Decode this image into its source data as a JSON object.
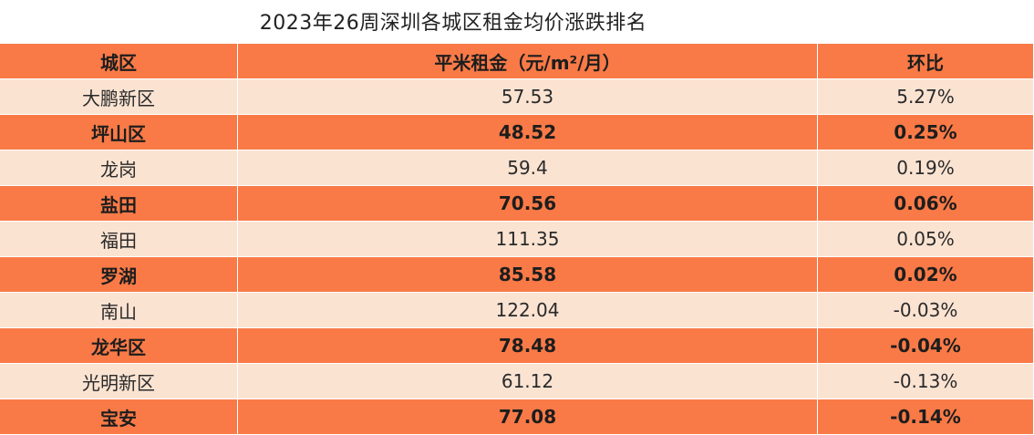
{
  "title": "2023年26周深圳各城区租金均价涨跌排名",
  "header": {
    "district": "城区",
    "rent": "平米租金（元/m²/月）",
    "change": "环比"
  },
  "rows": [
    {
      "district": "大鹏新区",
      "rent": "57.53",
      "change": "5.27%",
      "style": "light"
    },
    {
      "district": "坪山区",
      "rent": "48.52",
      "change": "0.25%",
      "style": "dark"
    },
    {
      "district": "龙岗",
      "rent": "59.4",
      "change": "0.19%",
      "style": "light"
    },
    {
      "district": "盐田",
      "rent": "70.56",
      "change": "0.06%",
      "style": "dark"
    },
    {
      "district": "福田",
      "rent": "111.35",
      "change": "0.05%",
      "style": "light"
    },
    {
      "district": "罗湖",
      "rent": "85.58",
      "change": "0.02%",
      "style": "dark"
    },
    {
      "district": "南山",
      "rent": "122.04",
      "change": "-0.03%",
      "style": "light"
    },
    {
      "district": "龙华区",
      "rent": "78.48",
      "change": "-0.04%",
      "style": "dark"
    },
    {
      "district": "光明新区",
      "rent": "61.12",
      "change": "-0.13%",
      "style": "light"
    },
    {
      "district": "宝安",
      "rent": "77.08",
      "change": "-0.14%",
      "style": "dark"
    }
  ],
  "colors": {
    "header_bg": "#f97a47",
    "dark_row_bg": "#f97a47",
    "light_row_bg": "#fbe3d2"
  },
  "chart_data": {
    "type": "table",
    "title": "2023年26周深圳各城区租金均价涨跌排名",
    "columns": [
      "城区",
      "平米租金（元/m²/月）",
      "环比"
    ],
    "rows": [
      [
        "大鹏新区",
        57.53,
        "5.27%"
      ],
      [
        "坪山区",
        48.52,
        "0.25%"
      ],
      [
        "龙岗",
        59.4,
        "0.19%"
      ],
      [
        "盐田",
        70.56,
        "0.06%"
      ],
      [
        "福田",
        111.35,
        "0.05%"
      ],
      [
        "罗湖",
        85.58,
        "0.02%"
      ],
      [
        "南山",
        122.04,
        "-0.03%"
      ],
      [
        "龙华区",
        78.48,
        "-0.04%"
      ],
      [
        "光明新区",
        61.12,
        "-0.13%"
      ],
      [
        "宝安",
        77.08,
        "-0.14%"
      ]
    ]
  }
}
